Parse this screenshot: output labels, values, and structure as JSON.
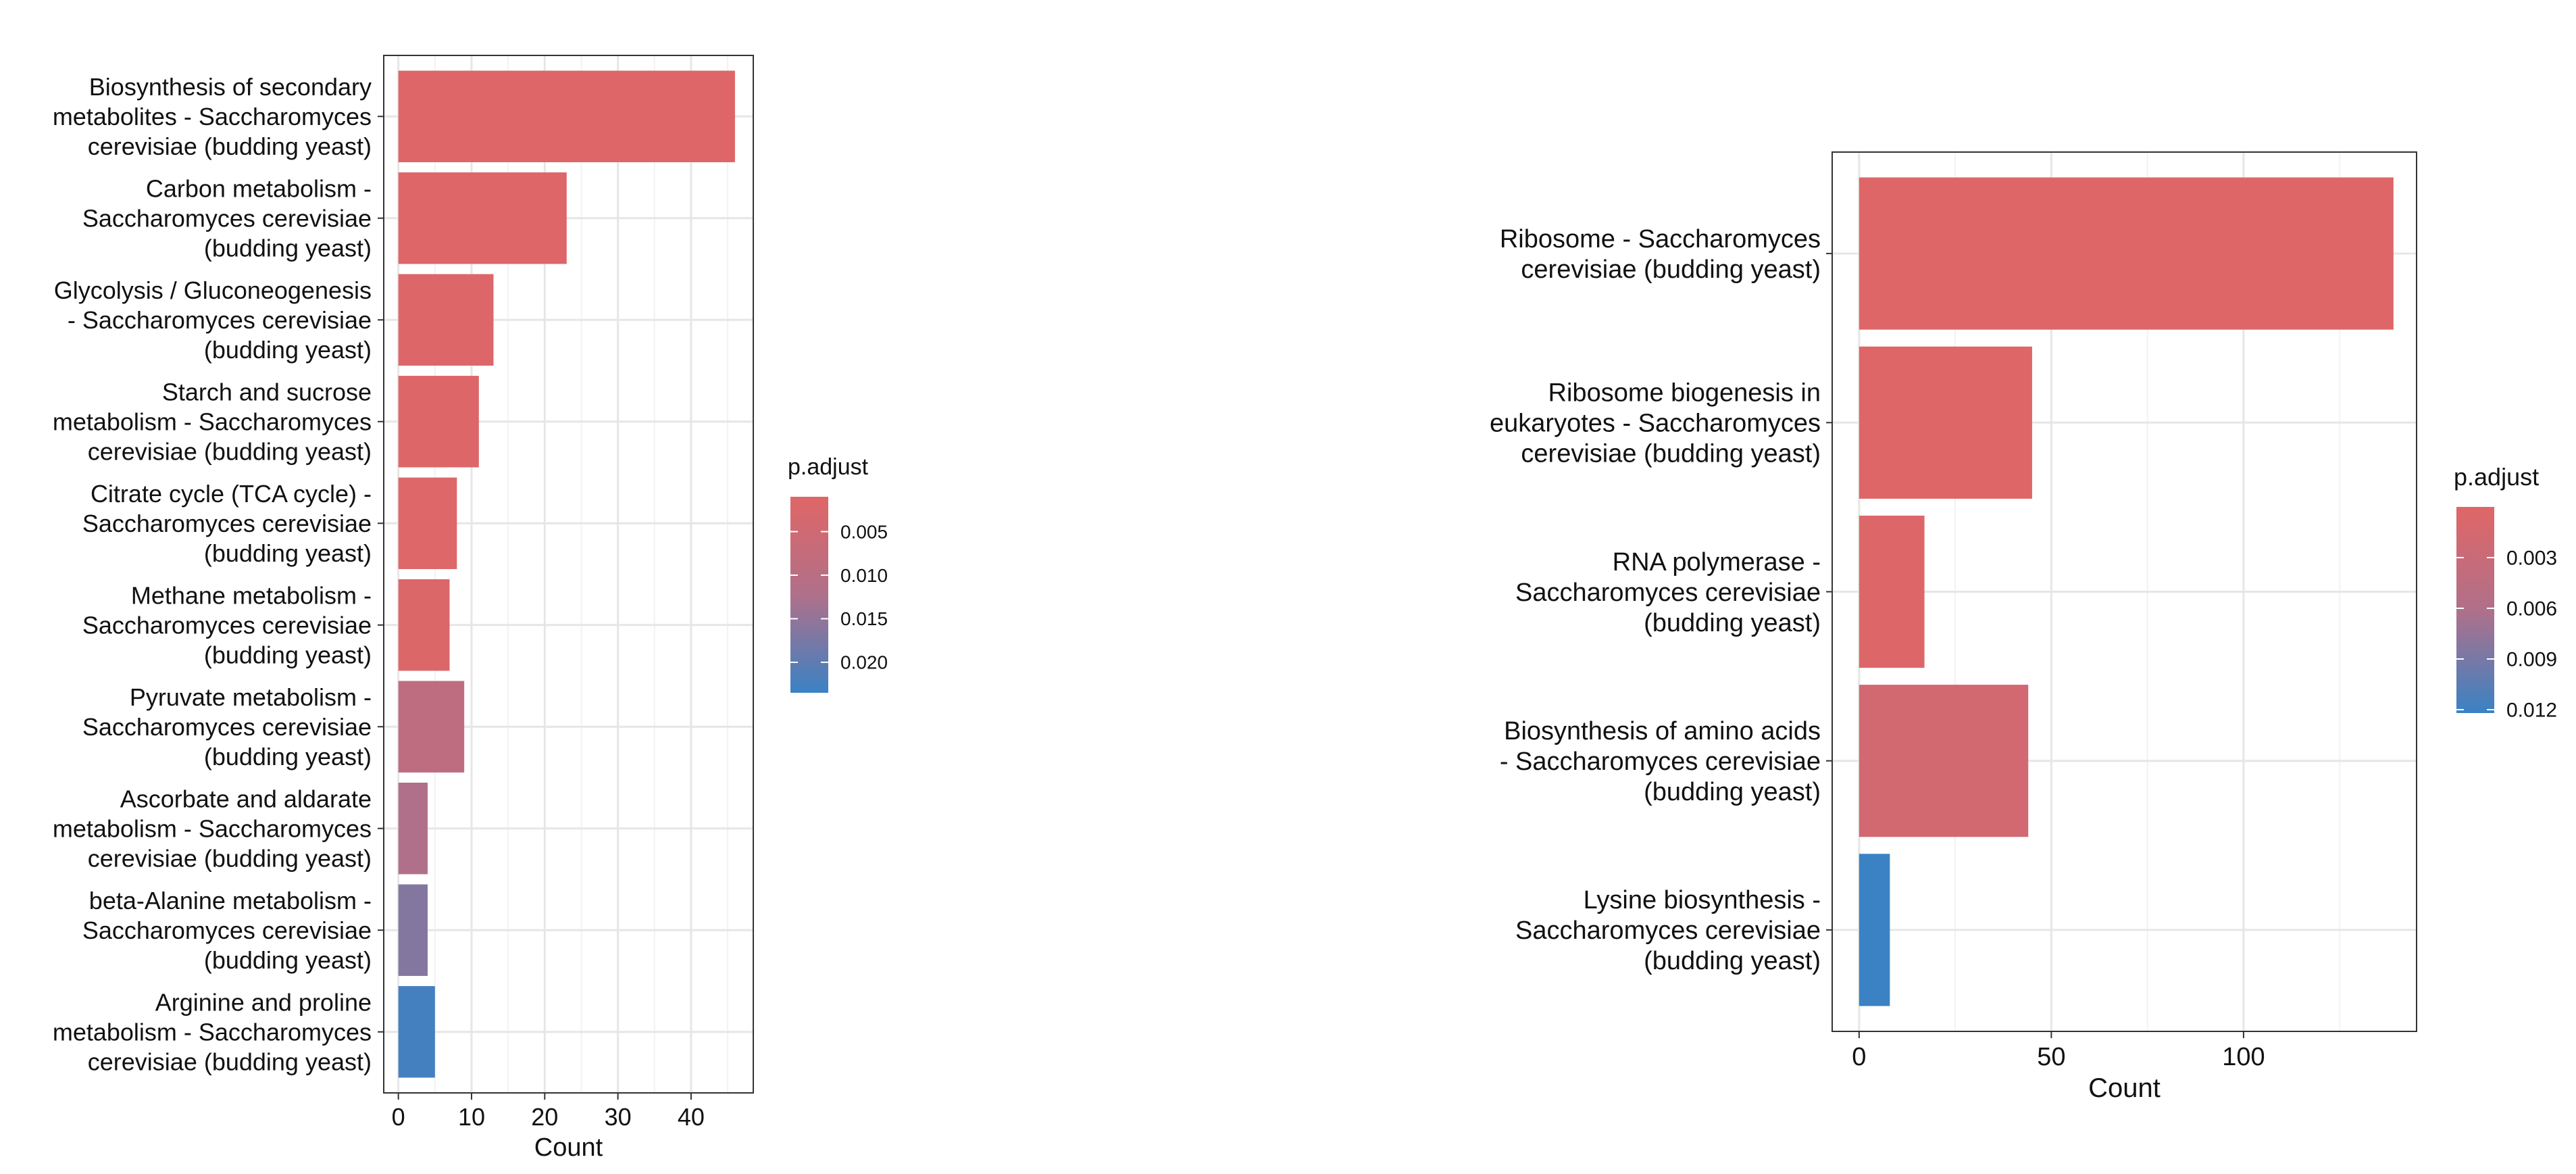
{
  "chart_data": [
    {
      "type": "bar",
      "orientation": "horizontal",
      "xlabel": "Count",
      "ylabel": "",
      "xlim": [
        -2,
        48.5
      ],
      "x_ticks": [
        0,
        10,
        20,
        30,
        40
      ],
      "grid": true,
      "legend_position": "right",
      "categories": [
        [
          "Biosynthesis of secondary",
          "metabolites - Saccharomyces",
          "cerevisiae (budding yeast)"
        ],
        [
          "Carbon metabolism -",
          "Saccharomyces cerevisiae",
          "(budding yeast)"
        ],
        [
          "Glycolysis / Gluconeogenesis",
          "- Saccharomyces cerevisiae",
          "(budding yeast)"
        ],
        [
          "Starch and sucrose",
          "metabolism - Saccharomyces",
          "cerevisiae (budding yeast)"
        ],
        [
          "Citrate cycle (TCA cycle) -",
          "Saccharomyces cerevisiae",
          "(budding yeast)"
        ],
        [
          "Methane metabolism -",
          "Saccharomyces cerevisiae",
          "(budding yeast)"
        ],
        [
          "Pyruvate metabolism -",
          "Saccharomyces cerevisiae",
          "(budding yeast)"
        ],
        [
          "Ascorbate and aldarate",
          "metabolism - Saccharomyces",
          "cerevisiae (budding yeast)"
        ],
        [
          "beta-Alanine metabolism -",
          "Saccharomyces cerevisiae",
          "(budding yeast)"
        ],
        [
          "Arginine and proline",
          "metabolism - Saccharomyces",
          "cerevisiae (budding yeast)"
        ]
      ],
      "values": [
        46,
        23,
        13,
        11,
        8,
        7,
        9,
        4,
        4,
        5
      ],
      "p_adjust": [
        0.0015,
        0.0015,
        0.0016,
        0.0016,
        0.0018,
        0.0019,
        0.009,
        0.012,
        0.0165,
        0.0225
      ],
      "legend": {
        "title": "p.adjust",
        "range": [
          0.001,
          0.0235
        ],
        "ticks": [
          0.005,
          0.01,
          0.015,
          0.02
        ],
        "tick_labels": [
          "0.005",
          "0.010",
          "0.015",
          "0.020"
        ],
        "low_color": "#e06666",
        "high_color": "#3a82c4"
      }
    },
    {
      "type": "bar",
      "orientation": "horizontal",
      "xlabel": "Count",
      "ylabel": "",
      "xlim": [
        -7,
        145
      ],
      "x_ticks": [
        0,
        50,
        100
      ],
      "grid": true,
      "legend_position": "right",
      "categories": [
        [
          "Ribosome - Saccharomyces",
          "cerevisiae (budding yeast)"
        ],
        [
          "Ribosome biogenesis in",
          "eukaryotes - Saccharomyces",
          "cerevisiae (budding yeast)"
        ],
        [
          "RNA polymerase -",
          "Saccharomyces cerevisiae",
          "(budding yeast)"
        ],
        [
          "Biosynthesis of amino acids",
          "- Saccharomyces cerevisiae",
          "(budding yeast)"
        ],
        [
          "Lysine biosynthesis -",
          "Saccharomyces cerevisiae",
          "(budding yeast)"
        ]
      ],
      "values": [
        139,
        45,
        17,
        44,
        8
      ],
      "p_adjust": [
        0.0001,
        0.0002,
        0.0004,
        0.0018,
        0.0122
      ],
      "legend": {
        "title": "p.adjust",
        "range": [
          0.0,
          0.0122
        ],
        "ticks": [
          0.003,
          0.006,
          0.009,
          0.012
        ],
        "tick_labels": [
          "0.003",
          "0.006",
          "0.009",
          "0.012"
        ],
        "low_color": "#e06666",
        "high_color": "#3a82c4"
      }
    }
  ]
}
